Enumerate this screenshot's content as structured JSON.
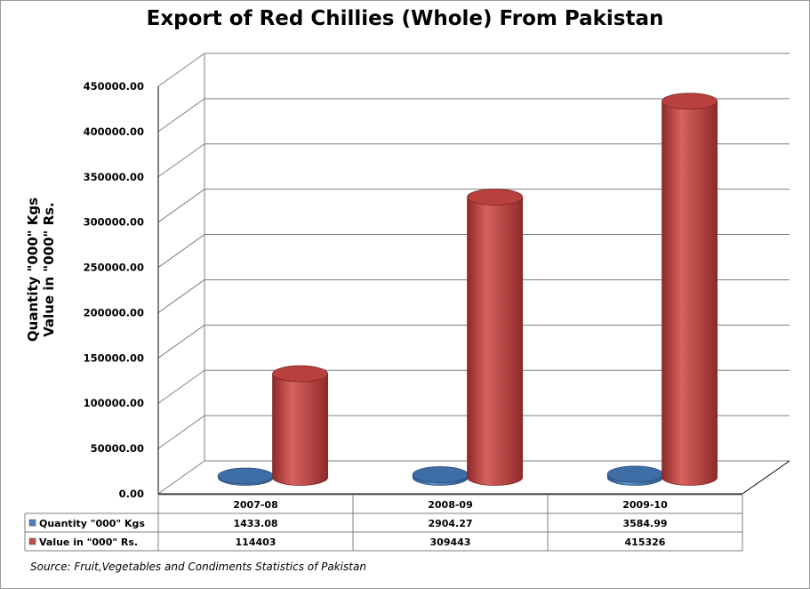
{
  "chart_data": {
    "type": "bar",
    "title": "Export of Red Chillies (Whole) From Pakistan",
    "ylabel_lines": [
      "Quantity \"000\" Kgs",
      "Value in \"000\" Rs."
    ],
    "categories": [
      "2007-08",
      "2008-09",
      "2009-10"
    ],
    "series": [
      {
        "name": "Quantity \"000\" Kgs",
        "values": [
          1433.08,
          2904.27,
          3584.99
        ],
        "labels": [
          "1433.08",
          "2904.27",
          "3584.99"
        ],
        "color": "#4f81bd"
      },
      {
        "name": "Value in \"000\" Rs.",
        "values": [
          114403,
          309443,
          415326
        ],
        "labels": [
          "114403",
          "309443",
          "415326"
        ],
        "color": "#c0504d"
      }
    ],
    "ylim": [
      0,
      450000
    ],
    "yticks": [
      "0.00",
      "50000.00",
      "100000.00",
      "150000.00",
      "200000.00",
      "250000.00",
      "300000.00",
      "350000.00",
      "400000.00",
      "450000.00"
    ],
    "grid": true,
    "legend": "data-table",
    "source": "Source: Fruit,Vegetables and Condiments Statistics of Pakistan"
  }
}
